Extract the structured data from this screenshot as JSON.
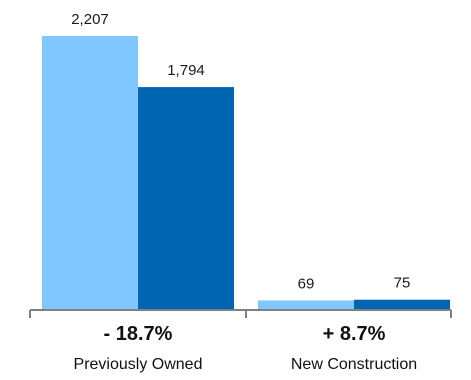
{
  "chart_data": {
    "type": "bar",
    "categories": [
      "Previously Owned",
      "New Construction"
    ],
    "change_labels": [
      "- 18.7%",
      "+ 8.7%"
    ],
    "series": [
      {
        "values": [
          2207,
          69
        ],
        "color": "#80c6ff"
      },
      {
        "values": [
          1794,
          75
        ],
        "color": "#0066b3"
      }
    ],
    "value_labels": [
      [
        "2,207",
        "69"
      ],
      [
        "1,794",
        "75"
      ]
    ],
    "ylim": [
      0,
      2207
    ],
    "axis_color": "#808080",
    "grid": false
  }
}
